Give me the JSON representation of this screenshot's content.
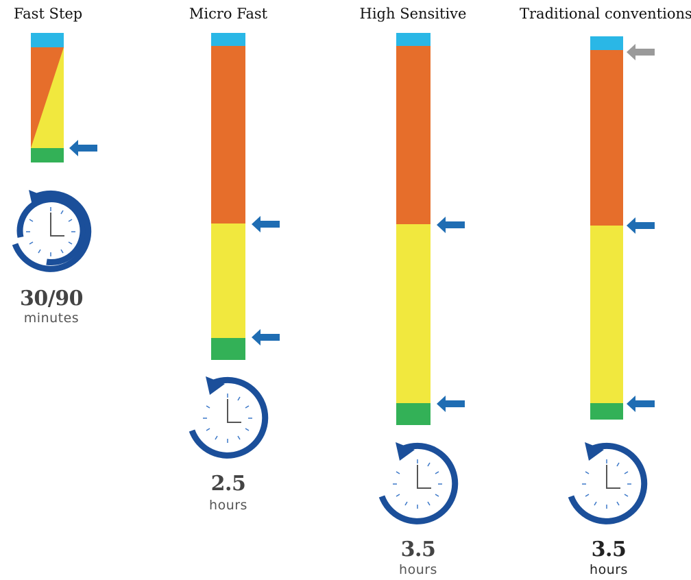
{
  "colors": {
    "cyan": "#2ab7e6",
    "orange": "#e66e2b",
    "yellow": "#f1e83e",
    "green": "#33b157",
    "arrow_blue": "#1f6db3",
    "arrow_gray": "#9a9a9a",
    "clock_blue": "#1b4f9a"
  },
  "columns": [
    {
      "title": "Fast Step",
      "duration_value": "30/90",
      "duration_unit": "minutes",
      "icon": "clock-icon"
    },
    {
      "title": "Micro Fast",
      "duration_value": "2.5",
      "duration_unit": "hours",
      "icon": "clock-icon"
    },
    {
      "title": "High Sensitive",
      "duration_value": "3.5",
      "duration_unit": "hours",
      "icon": "clock-icon"
    },
    {
      "title": "Traditional conventions",
      "duration_value": "3.5",
      "duration_unit": "hours",
      "icon": "clock-icon"
    }
  ]
}
